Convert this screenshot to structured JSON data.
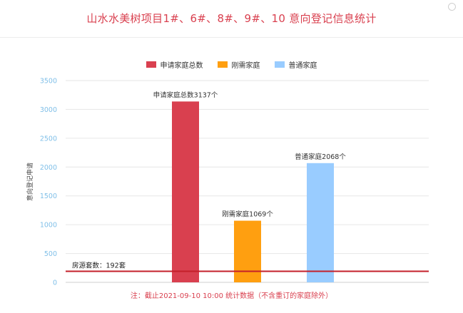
{
  "header": {
    "title": "山水水美树项目1#、6#、8#、9#、10 意向登记信息统计"
  },
  "icons": {
    "corner": "circle-icon"
  },
  "colors": {
    "series": [
      "#d9404f",
      "#ff9f10",
      "#99ccff"
    ],
    "baseline": "#c41f2a",
    "grid": "#e6e6e6",
    "tick": "#7fbfe8"
  },
  "chart_data": {
    "type": "bar",
    "categories": [
      "申请家庭总数",
      "刚需家庭",
      "普通家庭"
    ],
    "series": [
      {
        "name": "申请家庭总数",
        "values": [
          3137,
          null,
          null
        ]
      },
      {
        "name": "刚需家庭",
        "values": [
          null,
          1069,
          null
        ]
      },
      {
        "name": "普通家庭",
        "values": [
          null,
          null,
          2068
        ]
      }
    ],
    "data_labels": [
      "申请家庭总数3137个",
      "刚需家庭1069个",
      "普通家庭2068个"
    ],
    "ylabel": "意向登记申请",
    "ylim": [
      0,
      3500
    ],
    "yticks": [
      0,
      500,
      1000,
      1500,
      2000,
      2500,
      3000,
      3500
    ],
    "grid": true,
    "legend_position": "top-center",
    "reference_line": {
      "value": 192,
      "label": "房源套数：192套"
    }
  },
  "note": "注：截止2021-09-10 10:00 统计数据（不含重订的家庭除外）"
}
